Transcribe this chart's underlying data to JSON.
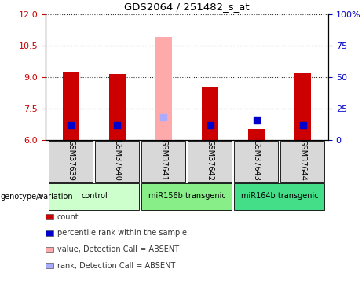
{
  "title": "GDS2064 / 251482_s_at",
  "samples": [
    "GSM37639",
    "GSM37640",
    "GSM37641",
    "GSM37642",
    "GSM37643",
    "GSM37644"
  ],
  "bar_values": [
    9.22,
    9.15,
    10.9,
    8.52,
    6.52,
    9.2
  ],
  "bar_colors": [
    "#cc0000",
    "#cc0000",
    "#ffaaaa",
    "#cc0000",
    "#cc0000",
    "#cc0000"
  ],
  "dot_values": [
    6.72,
    6.72,
    7.1,
    6.72,
    6.92,
    6.72
  ],
  "dot_colors": [
    "#0000cc",
    "#0000cc",
    "#aaaaff",
    "#0000cc",
    "#0000cc",
    "#0000cc"
  ],
  "ylim_left": [
    6,
    12
  ],
  "ylim_right": [
    0,
    100
  ],
  "yticks_left": [
    6,
    7.5,
    9,
    10.5,
    12
  ],
  "yticks_right": [
    0,
    25,
    50,
    75,
    100
  ],
  "groups": [
    {
      "label": "control",
      "samples": [
        0,
        1
      ],
      "color": "#ccffcc"
    },
    {
      "label": "miR156b transgenic",
      "samples": [
        2,
        3
      ],
      "color": "#88ee88"
    },
    {
      "label": "miR164b transgenic",
      "samples": [
        4,
        5
      ],
      "color": "#44dd88"
    }
  ],
  "legend_items": [
    {
      "label": "count",
      "color": "#cc0000"
    },
    {
      "label": "percentile rank within the sample",
      "color": "#0000cc"
    },
    {
      "label": "value, Detection Call = ABSENT",
      "color": "#ffaaaa"
    },
    {
      "label": "rank, Detection Call = ABSENT",
      "color": "#aaaaff"
    }
  ],
  "ylabel_left_color": "#cc0000",
  "ylabel_right_color": "#0000cc",
  "bar_width": 0.35,
  "dot_size": 40,
  "background_color": "#ffffff"
}
